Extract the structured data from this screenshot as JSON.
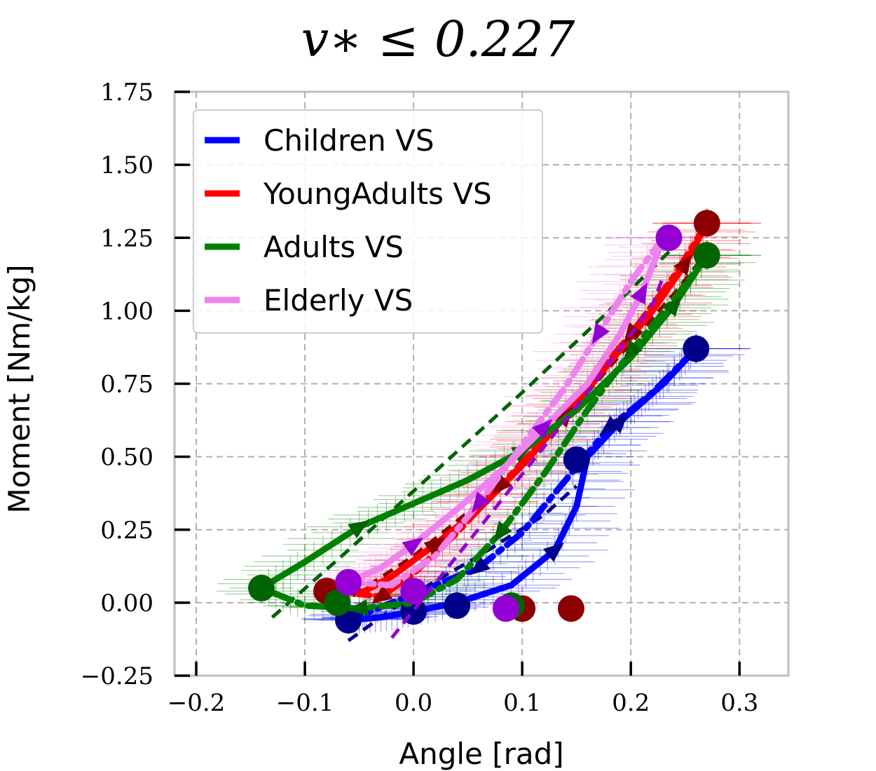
{
  "chart_data": {
    "type": "line",
    "title": "v∗ ≤ 0.227",
    "xlabel": "Angle [rad]",
    "ylabel": "Moment [Nm/kg]",
    "xlim": [
      -0.22,
      0.345
    ],
    "ylim": [
      -0.25,
      1.75
    ],
    "xticks": [
      -0.2,
      -0.1,
      0.0,
      0.1,
      0.2,
      0.3
    ],
    "xtick_labels": [
      "−0.2",
      "−0.1",
      "0.0",
      "0.1",
      "0.2",
      "0.3"
    ],
    "yticks": [
      -0.25,
      0.0,
      0.25,
      0.5,
      0.75,
      1.0,
      1.25,
      1.5,
      1.75
    ],
    "ytick_labels": [
      "−0.25",
      "0.00",
      "0.25",
      "0.50",
      "0.75",
      "1.00",
      "1.25",
      "1.50",
      "1.75"
    ],
    "grid": true,
    "legend_position": "top-left",
    "series": [
      {
        "name": "Children VS",
        "color": "#0000ff",
        "dark_color": "#00008b",
        "loading": [
          [
            -0.06,
            -0.06
          ],
          [
            -0.03,
            -0.05
          ],
          [
            0.0,
            -0.03
          ],
          [
            0.04,
            0.0
          ],
          [
            0.09,
            0.06
          ],
          [
            0.13,
            0.18
          ],
          [
            0.15,
            0.33
          ],
          [
            0.16,
            0.5
          ],
          [
            0.19,
            0.62
          ],
          [
            0.23,
            0.75
          ],
          [
            0.26,
            0.87
          ]
        ],
        "unloading": [
          [
            0.26,
            0.87
          ],
          [
            0.22,
            0.72
          ],
          [
            0.18,
            0.6
          ],
          [
            0.14,
            0.42
          ],
          [
            0.1,
            0.24
          ],
          [
            0.06,
            0.12
          ],
          [
            0.0,
            0.03
          ],
          [
            -0.04,
            -0.03
          ],
          [
            -0.06,
            -0.06
          ]
        ],
        "fit": [
          [
            -0.06,
            -0.13
          ],
          [
            0.0,
            0.03
          ],
          [
            0.06,
            0.16
          ],
          [
            0.12,
            0.3
          ],
          [
            0.15,
            0.4
          ]
        ],
        "endpoints": [
          [
            -0.06,
            -0.06
          ],
          [
            0.26,
            0.87
          ],
          [
            0.0,
            -0.03
          ],
          [
            0.04,
            -0.01
          ],
          [
            0.15,
            0.49
          ]
        ]
      },
      {
        "name": "YoungAdults VS",
        "color": "#ff0000",
        "dark_color": "#8b0000",
        "loading": [
          [
            -0.05,
            0.03
          ],
          [
            -0.02,
            0.09
          ],
          [
            0.02,
            0.2
          ],
          [
            0.06,
            0.32
          ],
          [
            0.1,
            0.47
          ],
          [
            0.14,
            0.64
          ],
          [
            0.18,
            0.82
          ],
          [
            0.22,
            1.0
          ],
          [
            0.25,
            1.16
          ],
          [
            0.27,
            1.3
          ]
        ],
        "unloading": [
          [
            0.27,
            1.3
          ],
          [
            0.24,
            1.12
          ],
          [
            0.2,
            0.92
          ],
          [
            0.16,
            0.74
          ],
          [
            0.12,
            0.56
          ],
          [
            0.08,
            0.4
          ],
          [
            0.04,
            0.24
          ],
          [
            0.0,
            0.1
          ],
          [
            -0.03,
            0.02
          ],
          [
            -0.05,
            0.03
          ]
        ],
        "fit": [
          [
            -0.07,
            -0.01
          ],
          [
            0.0,
            0.16
          ],
          [
            0.08,
            0.4
          ],
          [
            0.16,
            0.72
          ],
          [
            0.24,
            1.06
          ],
          [
            0.27,
            1.2
          ]
        ],
        "endpoints": [
          [
            -0.08,
            0.04
          ],
          [
            0.27,
            1.3
          ],
          [
            0.145,
            -0.02
          ],
          [
            0.1,
            -0.02
          ]
        ]
      },
      {
        "name": "Adults VS",
        "color": "#008000",
        "dark_color": "#006400",
        "loading": [
          [
            -0.14,
            0.05
          ],
          [
            -0.1,
            0.14
          ],
          [
            -0.05,
            0.26
          ],
          [
            0.0,
            0.34
          ],
          [
            0.05,
            0.42
          ],
          [
            0.1,
            0.52
          ],
          [
            0.15,
            0.66
          ],
          [
            0.2,
            0.84
          ],
          [
            0.24,
            1.02
          ],
          [
            0.27,
            1.19
          ]
        ],
        "unloading": [
          [
            0.27,
            1.19
          ],
          [
            0.24,
            1.04
          ],
          [
            0.2,
            0.86
          ],
          [
            0.16,
            0.66
          ],
          [
            0.12,
            0.44
          ],
          [
            0.08,
            0.24
          ],
          [
            0.04,
            0.08
          ],
          [
            0.0,
            0.0
          ],
          [
            -0.05,
            -0.02
          ],
          [
            -0.1,
            -0.01
          ],
          [
            -0.14,
            0.05
          ]
        ],
        "fit": [
          [
            -0.13,
            -0.05
          ],
          [
            -0.06,
            0.18
          ],
          [
            0.02,
            0.45
          ],
          [
            0.1,
            0.72
          ],
          [
            0.18,
            1.0
          ],
          [
            0.24,
            1.22
          ]
        ],
        "endpoints": [
          [
            -0.14,
            0.05
          ],
          [
            0.27,
            1.19
          ],
          [
            0.09,
            -0.01
          ],
          [
            -0.07,
            0.0
          ]
        ]
      },
      {
        "name": "Elderly VS",
        "color": "#ee82ee",
        "dark_color": "#9400d3",
        "loading": [
          [
            -0.06,
            0.07
          ],
          [
            -0.03,
            0.12
          ],
          [
            0.0,
            0.2
          ],
          [
            0.04,
            0.32
          ],
          [
            0.08,
            0.45
          ],
          [
            0.12,
            0.6
          ],
          [
            0.16,
            0.75
          ],
          [
            0.19,
            0.92
          ],
          [
            0.21,
            1.06
          ],
          [
            0.23,
            1.25
          ]
        ],
        "unloading": [
          [
            0.23,
            1.25
          ],
          [
            0.2,
            1.1
          ],
          [
            0.17,
            0.92
          ],
          [
            0.14,
            0.74
          ],
          [
            0.1,
            0.54
          ],
          [
            0.06,
            0.34
          ],
          [
            0.02,
            0.16
          ],
          [
            -0.02,
            0.06
          ],
          [
            -0.06,
            0.07
          ]
        ],
        "fit": [
          [
            -0.02,
            -0.12
          ],
          [
            0.04,
            0.16
          ],
          [
            0.1,
            0.44
          ],
          [
            0.16,
            0.72
          ],
          [
            0.22,
            1.02
          ],
          [
            0.23,
            1.12
          ]
        ],
        "endpoints": [
          [
            -0.06,
            0.07
          ],
          [
            0.235,
            1.25
          ],
          [
            0.085,
            -0.02
          ],
          [
            0.0,
            0.04
          ]
        ]
      }
    ]
  }
}
